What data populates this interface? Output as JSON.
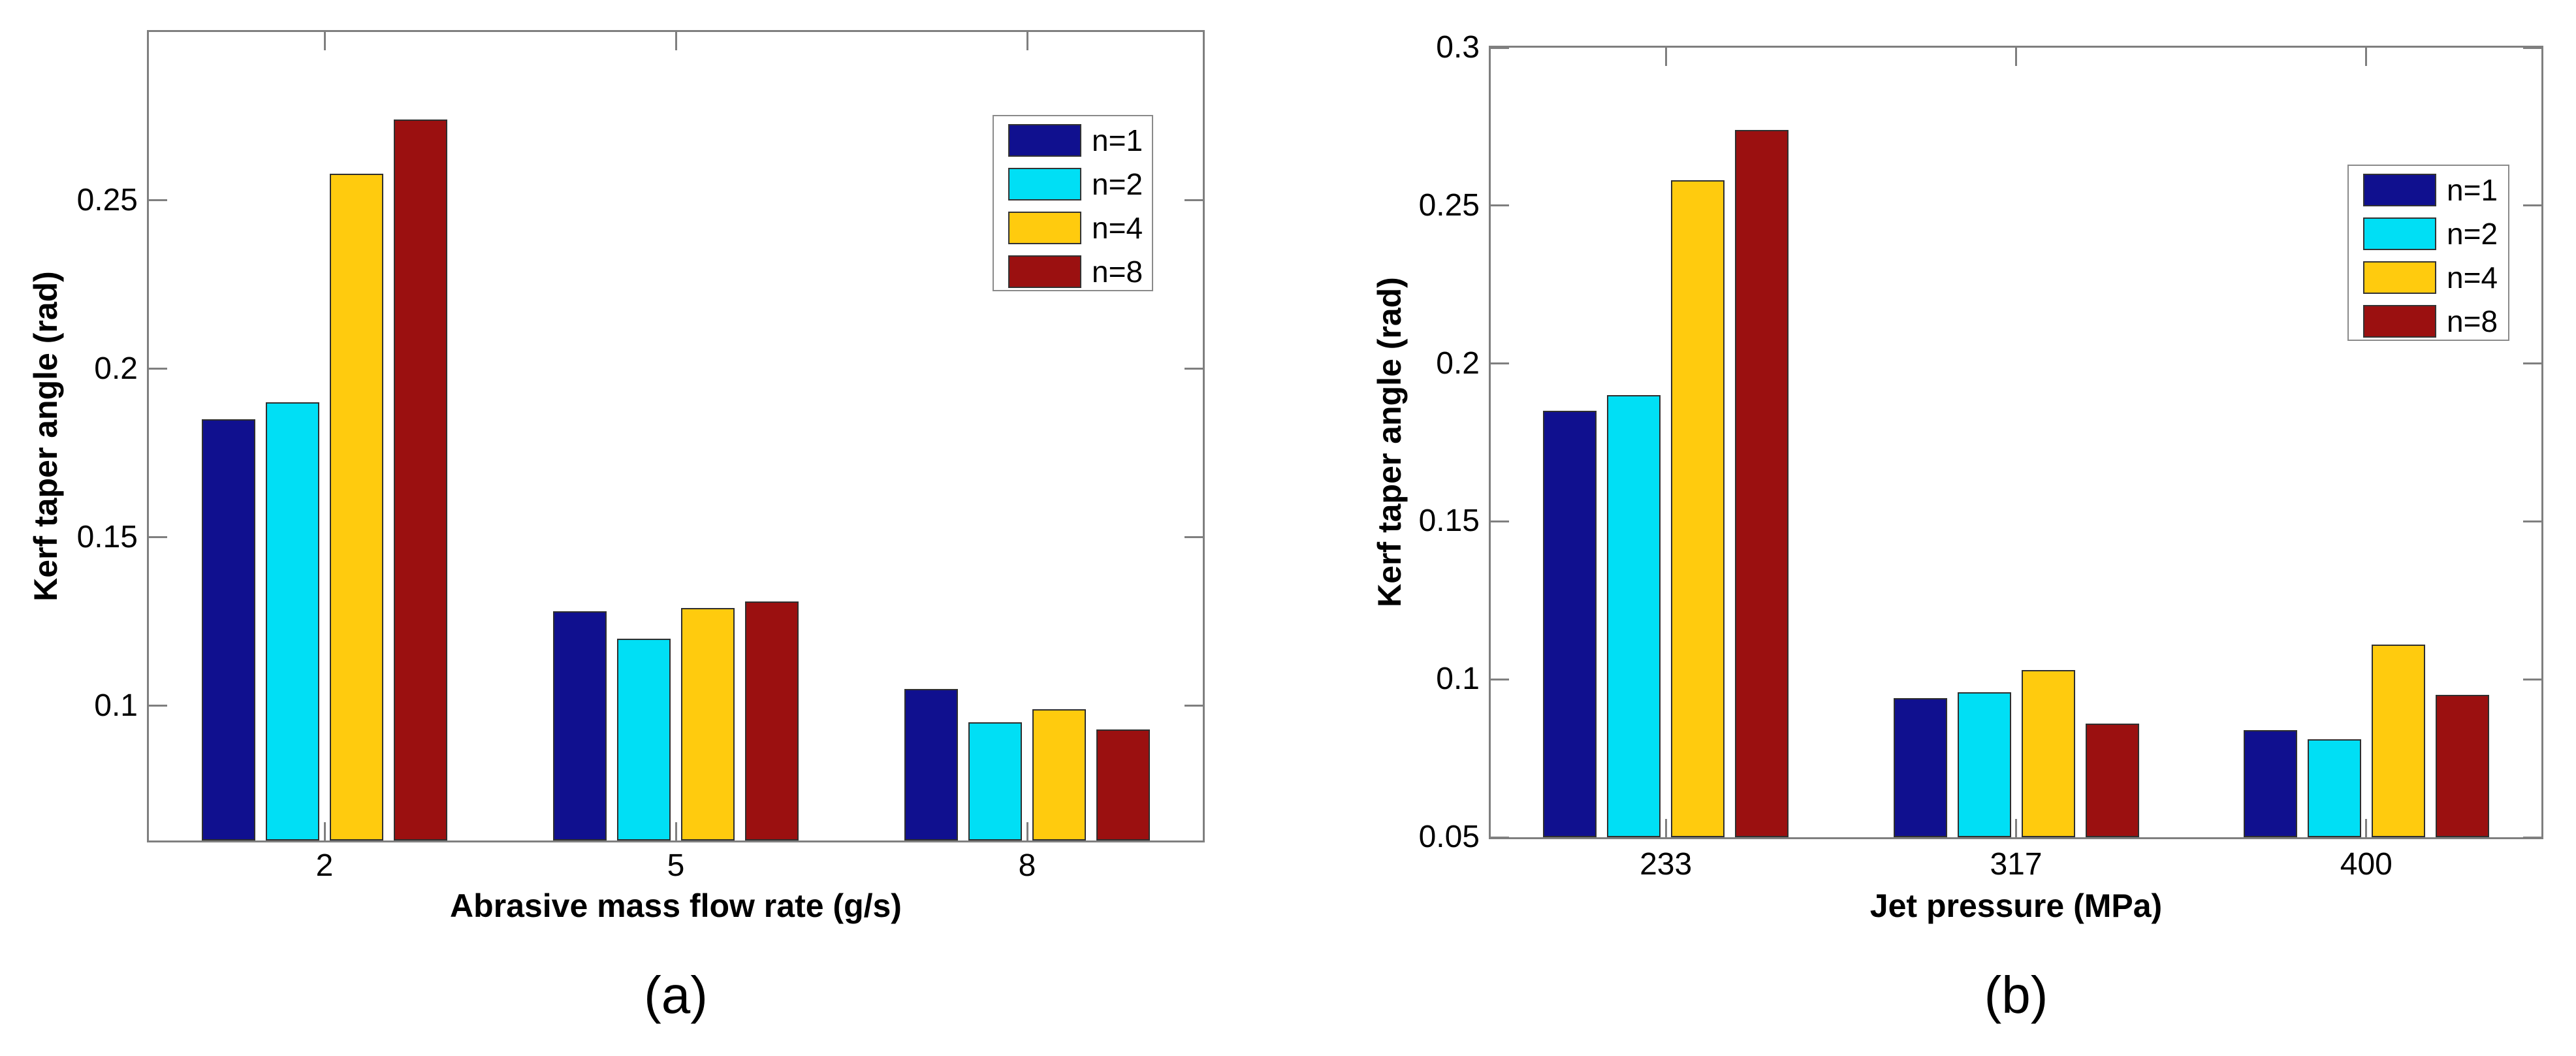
{
  "palette": {
    "axis_color": "#7f7f7f",
    "bar_edge_color": "#2f2f2f",
    "text_color": "#000000",
    "background": "#ffffff",
    "series_colors": {
      "n=1": "#10108F",
      "n=2": "#00DFF5",
      "n=4": "#FFCB0E",
      "n=8": "#9B1010"
    }
  },
  "legend": {
    "entries": [
      {
        "label": "n=1",
        "color": "#10108F"
      },
      {
        "label": "n=2",
        "color": "#00DFF5"
      },
      {
        "label": "n=4",
        "color": "#FFCB0E"
      },
      {
        "label": "n=8",
        "color": "#9B1010"
      }
    ],
    "position": "upper-right-inside"
  },
  "chart_data": [
    {
      "type": "bar",
      "panel": "a",
      "caption": "(a)",
      "title": "",
      "xlabel": "Abrasive mass flow rate (g/s)",
      "ylabel": "Kerf taper angle (rad)",
      "categories": [
        "2",
        "5",
        "8"
      ],
      "series": [
        {
          "name": "n=1",
          "color": "#10108F",
          "values": [
            0.185,
            0.128,
            0.105
          ]
        },
        {
          "name": "n=2",
          "color": "#00DFF5",
          "values": [
            0.19,
            0.12,
            0.095
          ]
        },
        {
          "name": "n=4",
          "color": "#FFCB0E",
          "values": [
            0.258,
            0.129,
            0.099
          ]
        },
        {
          "name": "n=8",
          "color": "#9B1010",
          "values": [
            0.274,
            0.131,
            0.093
          ]
        }
      ],
      "ylim": [
        0.06,
        0.3
      ],
      "yticks": [
        {
          "v": 0.25,
          "label": "0.25"
        },
        {
          "v": 0.2,
          "label": "0.2"
        },
        {
          "v": 0.15,
          "label": "0.15"
        },
        {
          "v": 0.1,
          "label": "0.1"
        }
      ],
      "grid": false,
      "legend_position": "upper-right-inside"
    },
    {
      "type": "bar",
      "panel": "b",
      "caption": "(b)",
      "title": "",
      "xlabel": "Jet pressure (MPa)",
      "ylabel": "Kerf taper angle (rad)",
      "categories": [
        "233",
        "317",
        "400"
      ],
      "series": [
        {
          "name": "n=1",
          "color": "#10108F",
          "values": [
            0.185,
            0.094,
            0.084
          ]
        },
        {
          "name": "n=2",
          "color": "#00DFF5",
          "values": [
            0.19,
            0.096,
            0.081
          ]
        },
        {
          "name": "n=4",
          "color": "#FFCB0E",
          "values": [
            0.258,
            0.103,
            0.111
          ]
        },
        {
          "name": "n=8",
          "color": "#9B1010",
          "values": [
            0.274,
            0.086,
            0.095
          ]
        }
      ],
      "ylim": [
        0.05,
        0.3
      ],
      "yticks": [
        {
          "v": 0.3,
          "label": "0.3"
        },
        {
          "v": 0.25,
          "label": "0.25"
        },
        {
          "v": 0.2,
          "label": "0.2"
        },
        {
          "v": 0.15,
          "label": "0.15"
        },
        {
          "v": 0.1,
          "label": "0.1"
        },
        {
          "v": 0.05,
          "label": "0.05"
        }
      ],
      "grid": false,
      "legend_position": "upper-right-inside"
    }
  ]
}
